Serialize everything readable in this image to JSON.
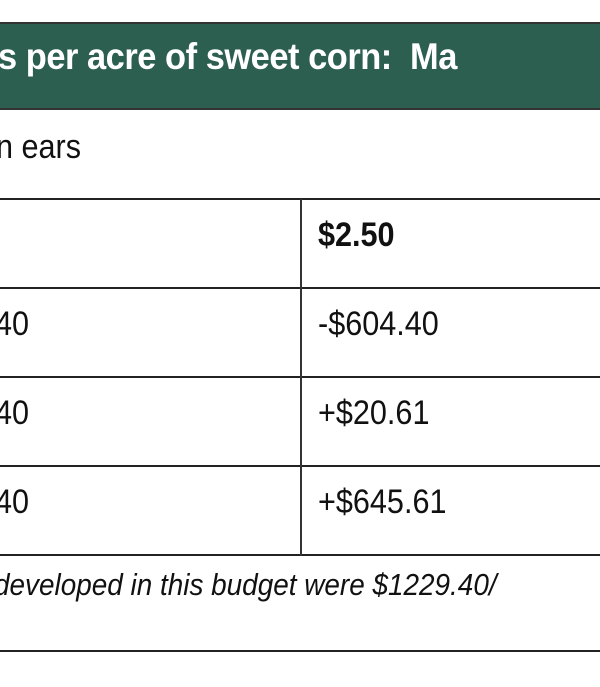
{
  "title": "s per acre of sweet corn:  Ma",
  "subtitle": "n ears",
  "table": {
    "header": [
      "",
      "$2.50"
    ],
    "rows": [
      [
        "40",
        "-$604.40"
      ],
      [
        "40",
        "+$20.61"
      ],
      [
        "40",
        "+$645.61"
      ]
    ]
  },
  "footnote": "developed in this budget were $1229.40/",
  "colors": {
    "header_bg": "#2d5f51"
  }
}
